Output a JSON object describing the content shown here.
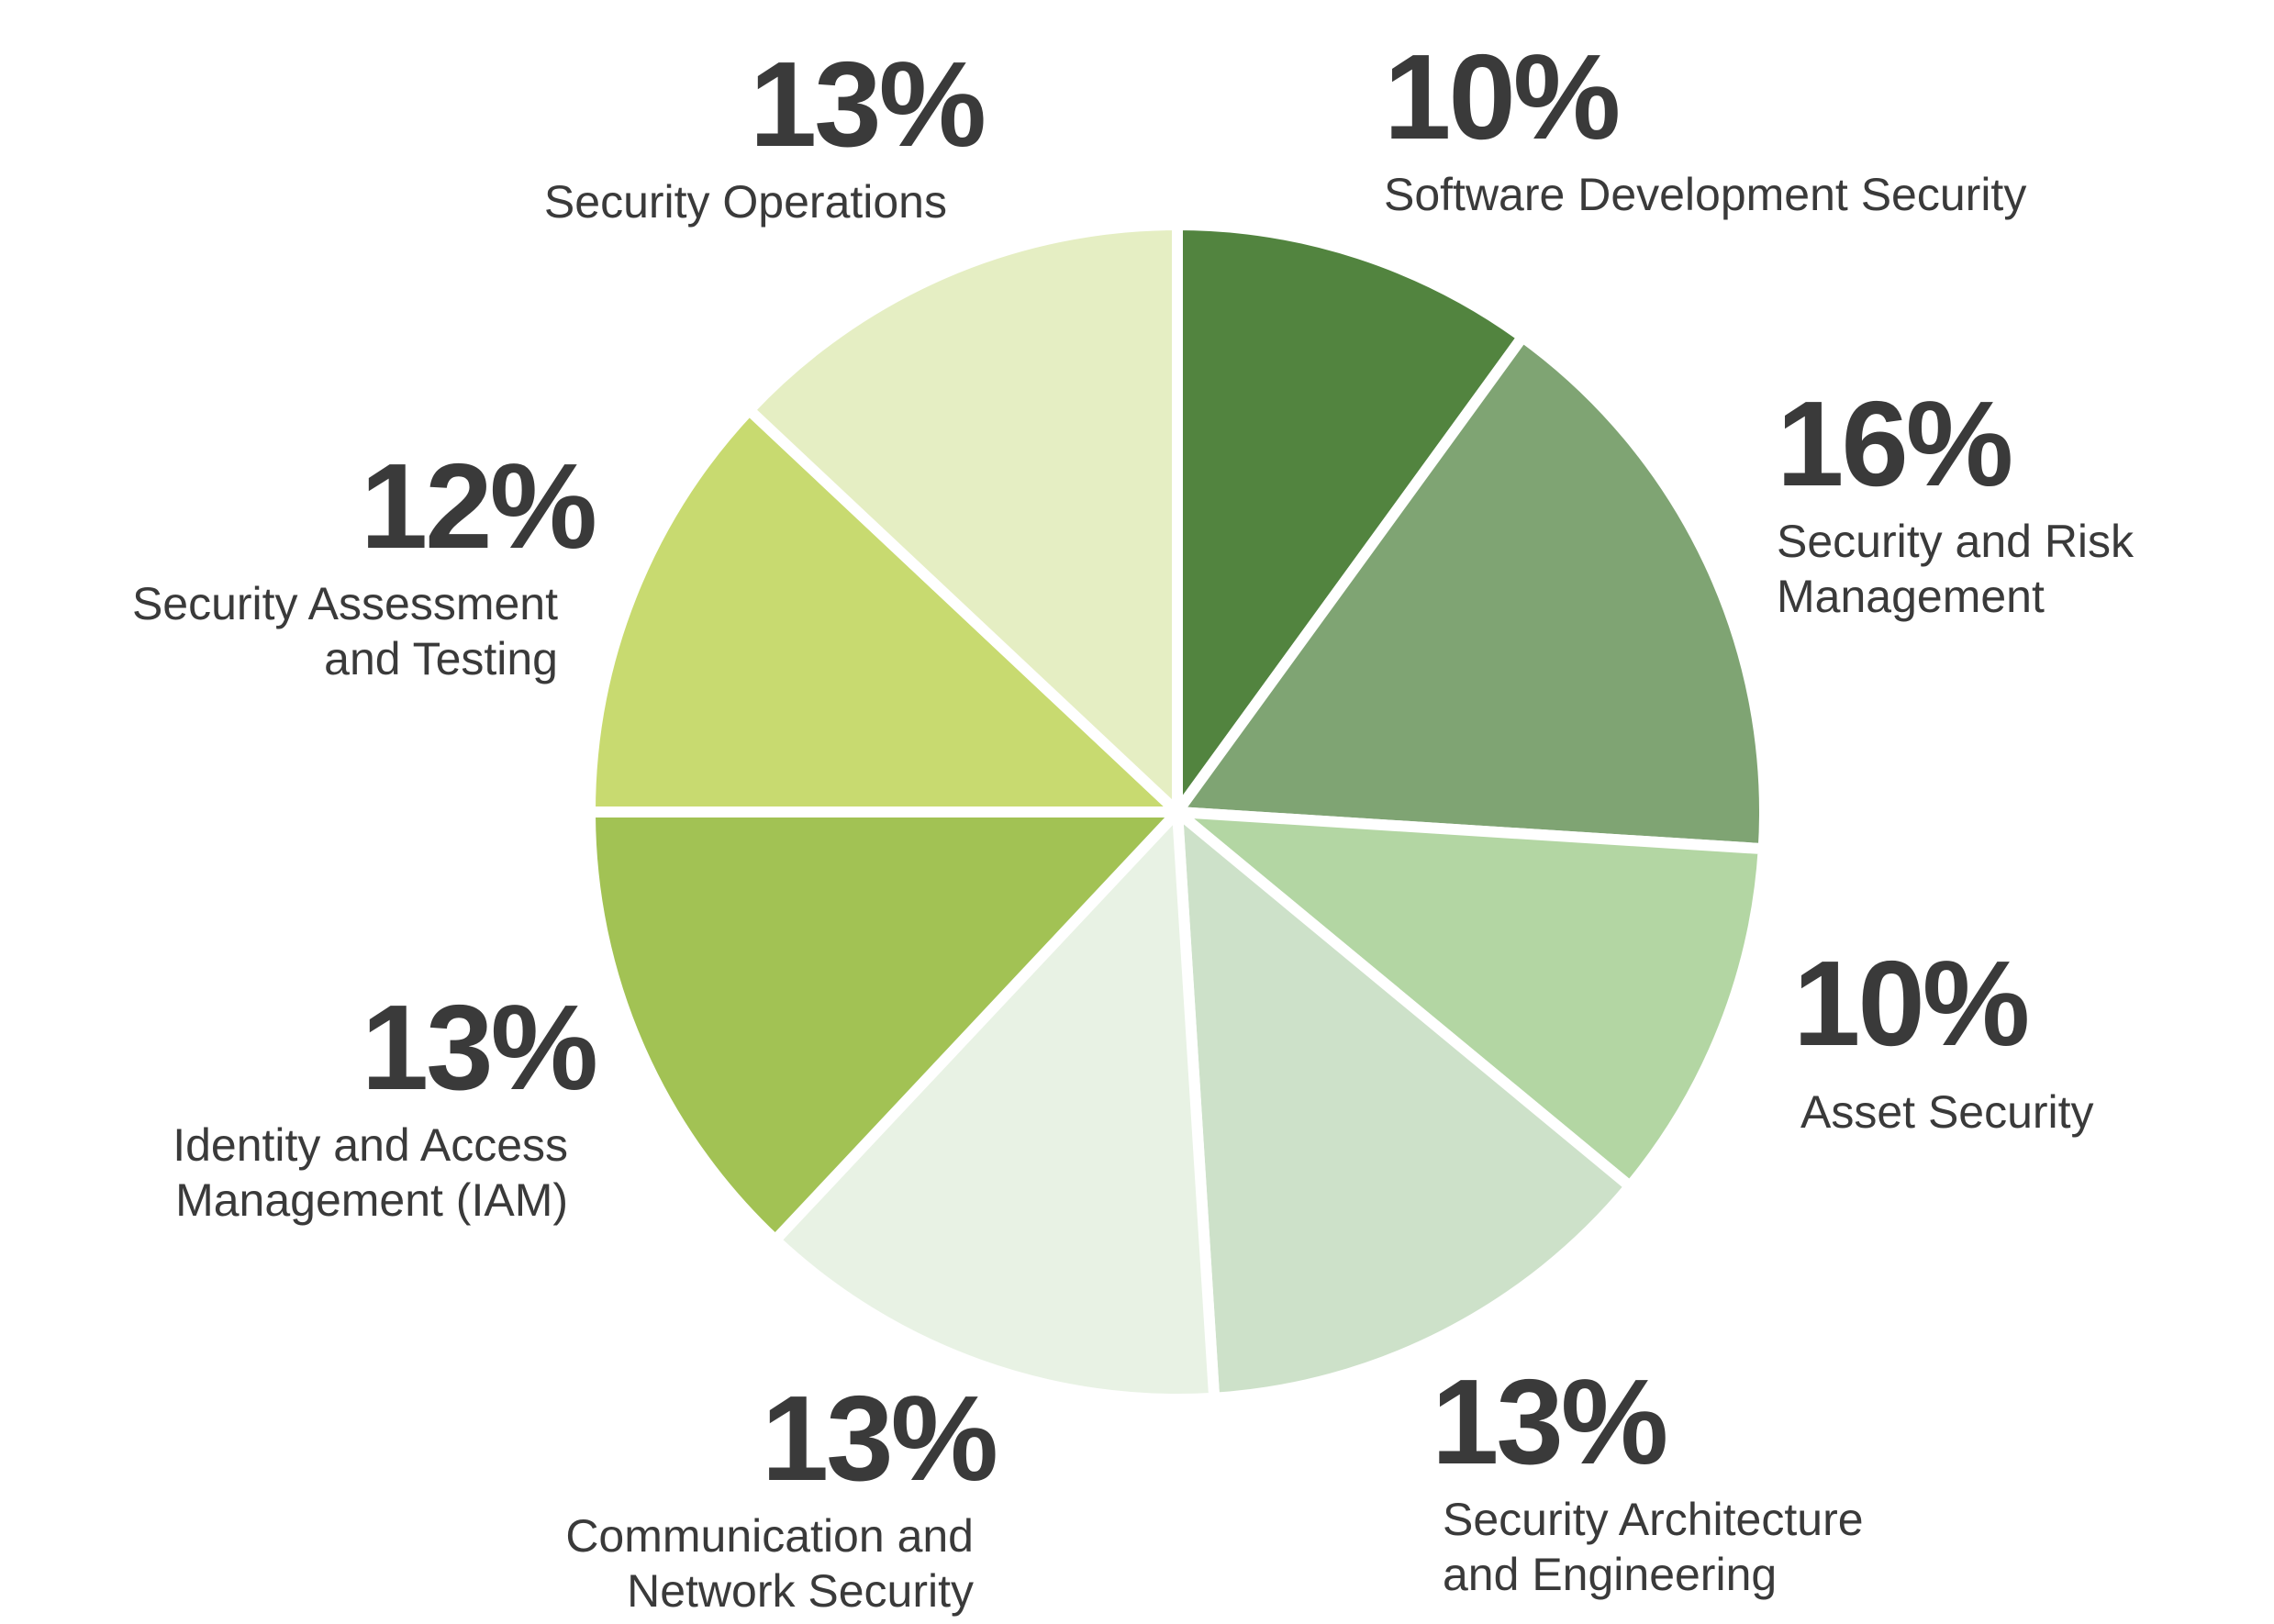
{
  "chart_data": {
    "type": "pie",
    "title": "",
    "start": "top",
    "direction": "clockwise",
    "slices": [
      {
        "label": "Software Development Security",
        "value": 10,
        "pct_label": "10%",
        "color": "#52843f"
      },
      {
        "label": "Security and Risk\nManagement",
        "value": 16,
        "pct_label": "16%",
        "color": "#7fa473"
      },
      {
        "label": "Asset Security",
        "value": 10,
        "pct_label": "10%",
        "color": "#b3d6a3"
      },
      {
        "label": "Security Architecture\nand Engineering",
        "value": 13,
        "pct_label": "13%",
        "color": "#cde1c9"
      },
      {
        "label": "Communication and\nNetwork Security",
        "value": 13,
        "pct_label": "13%",
        "color": "#e8f2e4"
      },
      {
        "label": "Identity and Access\nManagement (IAM)",
        "value": 13,
        "pct_label": "13%",
        "color": "#a2c254"
      },
      {
        "label": "Security Assessment\nand Testing",
        "value": 12,
        "pct_label": "12%",
        "color": "#c8da70"
      },
      {
        "label": "Security Operations",
        "value": 13,
        "pct_label": "13%",
        "color": "#e5eec3"
      }
    ]
  }
}
